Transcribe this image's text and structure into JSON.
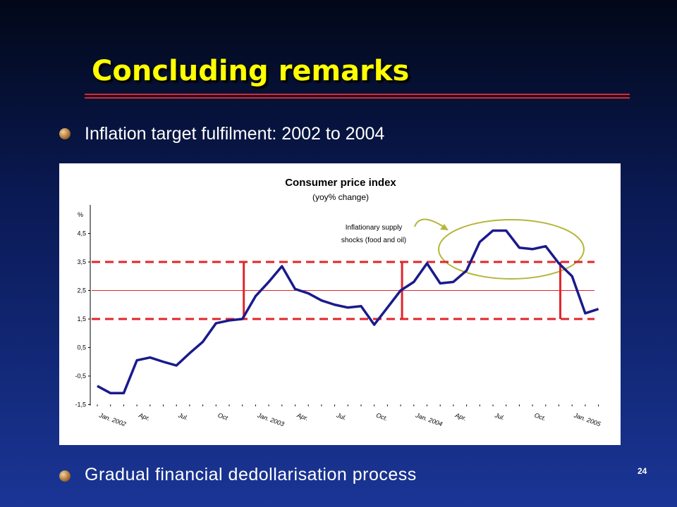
{
  "slide": {
    "title": "Concluding remarks",
    "bullets": [
      "Inflation target fulfilment: 2002 to 2004",
      "Gradual financial dedollarisation process"
    ],
    "page_number": "24"
  },
  "chart_data": {
    "type": "line",
    "title": "Consumer price index",
    "subtitle": "(yoy% change)",
    "y_label": "%",
    "categories": [
      "Jan. 2002",
      null,
      null,
      "Apr.",
      null,
      null,
      "Jul.",
      null,
      null,
      "Oct",
      null,
      null,
      "Jan. 2003",
      null,
      null,
      "Apr.",
      null,
      null,
      "Jul.",
      null,
      null,
      "Oct.",
      null,
      null,
      "Jan. 2004",
      null,
      null,
      "Apr.",
      null,
      null,
      "Jul.",
      null,
      null,
      "Oct.",
      null,
      null,
      "Jan. 2005",
      null,
      null
    ],
    "values": [
      -0.85,
      -1.1,
      -1.1,
      0.05,
      0.15,
      0.0,
      -0.13,
      0.3,
      0.7,
      1.35,
      1.45,
      1.5,
      2.3,
      2.8,
      3.35,
      2.55,
      2.4,
      2.15,
      2.0,
      1.9,
      1.95,
      1.3,
      1.9,
      2.5,
      2.8,
      3.45,
      2.75,
      2.8,
      3.2,
      4.2,
      4.6,
      4.6,
      4.0,
      3.95,
      4.05,
      3.45,
      3.0,
      1.7,
      1.85
    ],
    "color": "#1a1a8c",
    "ylim": [
      -1.5,
      5.5
    ],
    "yticks": [
      {
        "value": -1.5,
        "label": "-1,5"
      },
      {
        "value": -0.5,
        "label": "-0,5"
      },
      {
        "value": 0.5,
        "label": "0,5"
      },
      {
        "value": 1.5,
        "label": "1,5"
      },
      {
        "value": 2.5,
        "label": "2,5"
      },
      {
        "value": 3.5,
        "label": "3,5"
      },
      {
        "value": 4.5,
        "label": "4,5"
      }
    ],
    "target": 2.5,
    "target_range": [
      1.5,
      3.5
    ],
    "target_color": "#e0262a",
    "annotation": [
      "Inflationary supply",
      "shocks (food and oil)"
    ]
  }
}
